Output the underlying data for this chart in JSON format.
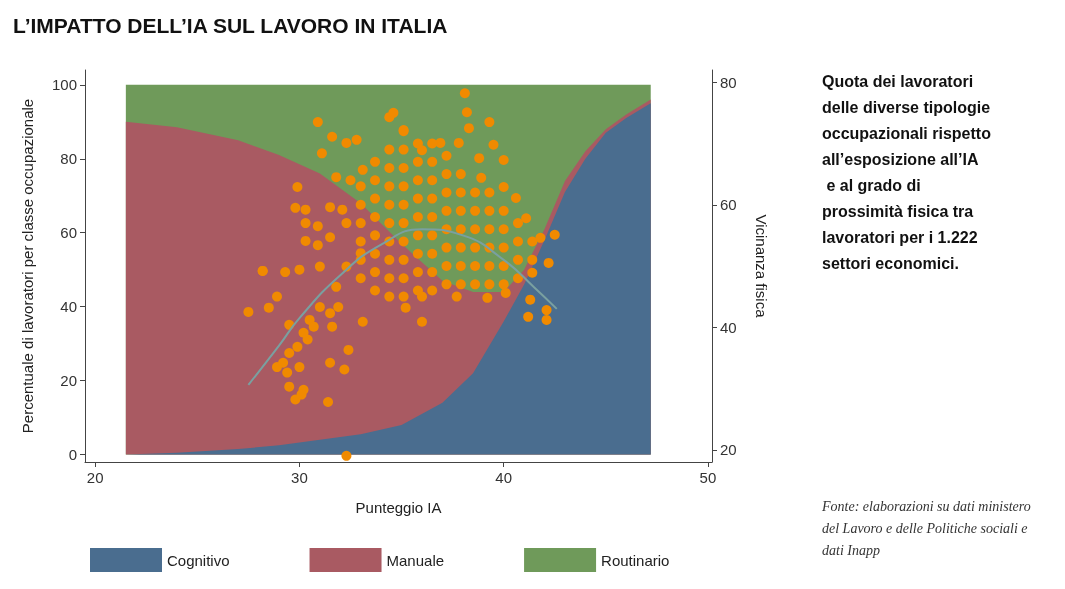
{
  "chart_data": {
    "type": "area",
    "title": "L’IMPATTO DELL’IA SUL LAVORO IN ITALIA",
    "xlabel": "Punteggio IA",
    "ylabel": "Percentuale di lavoratori per classe occupazionale",
    "y2label": "Vicinanza fisica",
    "annotations": [
      "Quota dei lavoratori delle diverse tipologie occupazionali rispetto all’esposizione all’IA e al grado di prossimità fisica tra lavoratori per i 1.222 settori economici.",
      "Fonte: elaborazioni su dati ministero del Lavoro e delle Politiche sociali e dati Inapp"
    ],
    "stacked": true,
    "legend": "bottom",
    "grid": false,
    "xlim": [
      19.5,
      50.2
    ],
    "xticks": [
      20,
      30,
      40,
      50
    ],
    "ylim": [
      -2,
      104
    ],
    "yticks": [
      0,
      20,
      40,
      60,
      80,
      100
    ],
    "y2lim": [
      18,
      82
    ],
    "y2ticks": [
      20,
      40,
      60,
      80
    ],
    "series": [
      {
        "name": "Cognitivo",
        "color": "#4a6d8f",
        "x": [
          21.5,
          24,
          27,
          29,
          31,
          33,
          35,
          37,
          38.5,
          40,
          41,
          42,
          43,
          44,
          45,
          46,
          47.2
        ],
        "values": [
          0,
          0.5,
          1.5,
          2.5,
          4,
          5.5,
          8,
          14,
          22,
          36,
          46,
          58,
          71,
          80,
          87,
          91,
          95
        ]
      },
      {
        "name": "Manuale",
        "color": "#a95a62",
        "x": [
          21.5,
          24,
          27,
          29,
          31,
          33,
          35,
          37,
          38.5,
          40,
          41,
          42,
          43,
          44,
          45,
          46,
          47.2
        ],
        "values": [
          90,
          88,
          83.5,
          78.5,
          72,
          62.5,
          49,
          33,
          22,
          8,
          4,
          3,
          3,
          2,
          1,
          1,
          1
        ]
      },
      {
        "name": "Routinario",
        "color": "#6f9a5a",
        "x": [
          21.5,
          24,
          27,
          29,
          31,
          33,
          35,
          37,
          38.5,
          40,
          41,
          42,
          43,
          44,
          45,
          46,
          47.2
        ],
        "values": [
          10,
          11.5,
          15,
          19,
          24,
          32,
          43,
          53,
          56,
          56,
          50,
          39,
          26,
          18,
          12,
          8,
          4
        ]
      },
      {
        "type": "scatter",
        "axis": "y2",
        "marker": "circle",
        "color": "#f08a00",
        "x": [
          32.3,
          27.5,
          28.2,
          29.9,
          30.9,
          30.3,
          29.5,
          30.2,
          29.8,
          31.4,
          29.8,
          30.3,
          30.9,
          30.3,
          30.9,
          28.2,
          28.5,
          28.9,
          29.3,
          30.0,
          31.0,
          29.5,
          30.1,
          32.2,
          31.5,
          32.4,
          33.1,
          28.9,
          30.2,
          31.0,
          31.8,
          32.3,
          33.0,
          29.2,
          29.5,
          29.9,
          30.4,
          30.5,
          29.4,
          30.0,
          30.7,
          31.5,
          31.9,
          31.6,
          31.6,
          32.3,
          32.8,
          31.1,
          31.8,
          32.5,
          31.5,
          32.1,
          32.3,
          31.5,
          33.1,
          34.4,
          38.1,
          38.2,
          38.3,
          39.3,
          39.5,
          40.0,
          38.8,
          38.9,
          40.0,
          40.6,
          41.1,
          41.8,
          42.5,
          42.2,
          41.4,
          41.3,
          42.1,
          42.1,
          41.2,
          36.0,
          35.2,
          36.0,
          37.7,
          39.2,
          40.1,
          34.6,
          35.1,
          36.9,
          37.8,
          36.0,
          33.0,
          33.0,
          33.0,
          33.0,
          33.0,
          33.0,
          33.7,
          33.7,
          33.7,
          33.7,
          33.7,
          33.7,
          33.7,
          33.7,
          34.4,
          34.4,
          34.4,
          34.4,
          34.4,
          34.4,
          34.4,
          34.4,
          34.4,
          35.1,
          35.1,
          35.1,
          35.1,
          35.1,
          35.1,
          35.1,
          35.1,
          35.1,
          35.1,
          35.8,
          35.8,
          35.8,
          35.8,
          35.8,
          35.8,
          35.8,
          35.8,
          35.8,
          36.5,
          36.5,
          36.5,
          36.5,
          36.5,
          36.5,
          36.5,
          36.5,
          36.5,
          37.2,
          37.2,
          37.2,
          37.2,
          37.2,
          37.2,
          37.2,
          37.2,
          37.9,
          37.9,
          37.9,
          37.9,
          37.9,
          37.9,
          37.9,
          38.6,
          38.6,
          38.6,
          38.6,
          38.6,
          38.6,
          39.3,
          39.3,
          39.3,
          39.3,
          39.3,
          39.3,
          40.0,
          40.0,
          40.0,
          40.0,
          40.0,
          40.7,
          40.7,
          40.7,
          40.7,
          41.4,
          41.4
        ],
        "values": [
          19.0,
          42.5,
          49.2,
          62.9,
          73.5,
          59.2,
          40.4,
          29.8,
          28.2,
          27.8,
          59.5,
          57.0,
          56.5,
          54.1,
          53.4,
          49.2,
          43.2,
          45.0,
          49.0,
          49.4,
          49.9,
          30.3,
          29.0,
          33.1,
          34.2,
          36.3,
          40.9,
          33.5,
          39.1,
          43.3,
          46.6,
          49.9,
          52.1,
          34.2,
          35.8,
          36.8,
          38.0,
          41.2,
          32.6,
          33.5,
          40.1,
          42.3,
          43.3,
          40.1,
          71.1,
          70.1,
          70.6,
          68.4,
          64.5,
          64.0,
          59.6,
          59.2,
          57.0,
          54.7,
          65.7,
          74.3,
          78.2,
          75.1,
          72.5,
          73.5,
          69.8,
          67.3,
          67.6,
          64.4,
          62.9,
          61.1,
          57.8,
          54.6,
          55.1,
          50.5,
          48.9,
          44.5,
          42.8,
          41.2,
          41.7,
          45.0,
          43.2,
          40.9,
          45.0,
          44.8,
          45.6,
          75.0,
          72.2,
          70.1,
          70.1,
          68.9,
          48,
          51,
          54,
          57,
          60,
          63,
          46,
          49,
          52,
          55,
          58,
          61,
          64,
          67,
          45,
          48,
          51,
          54,
          57,
          60,
          63,
          66,
          69,
          45,
          48,
          51,
          54,
          57,
          60,
          63,
          66,
          69,
          72,
          46,
          49,
          52,
          55,
          58,
          61,
          64,
          67,
          70,
          46,
          49,
          52,
          55,
          58,
          61,
          64,
          67,
          70,
          47,
          50,
          53,
          56,
          59,
          62,
          65,
          68,
          47,
          50,
          53,
          56,
          59,
          62,
          65,
          47,
          50,
          53,
          56,
          59,
          62,
          47,
          50,
          53,
          56,
          59,
          62,
          47,
          50,
          53,
          56,
          59,
          48,
          51,
          54,
          57,
          51,
          54
        ]
      },
      {
        "type": "line",
        "axis": "y2",
        "color": "#7aa0a0",
        "x": [
          27.5,
          29,
          30,
          32,
          34,
          36,
          38,
          40,
          41.5,
          42.6
        ],
        "values": [
          30.6,
          37,
          41.5,
          48.5,
          53.5,
          56,
          55,
          51,
          46.5,
          43
        ]
      }
    ]
  }
}
